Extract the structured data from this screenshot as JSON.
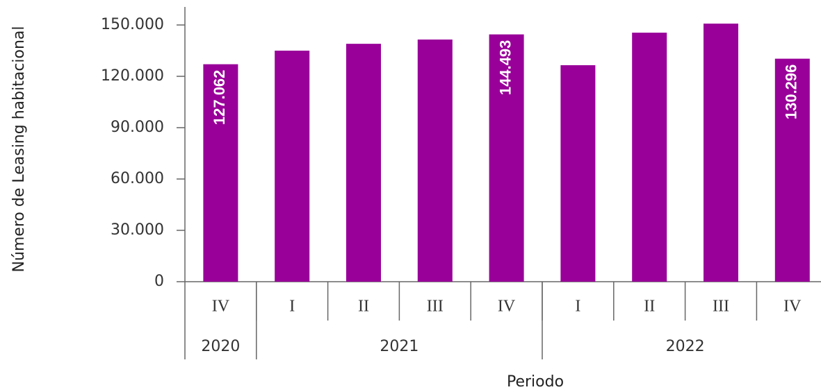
{
  "chart_data": {
    "type": "bar",
    "y_label": "Número de Leasing habitacional",
    "x_label": "Periodo",
    "categories": [
      "IV",
      "I",
      "II",
      "III",
      "IV",
      "I",
      "II",
      "III",
      "IV"
    ],
    "groups": [
      {
        "label": "2020",
        "count": 1
      },
      {
        "label": "2021",
        "count": 4
      },
      {
        "label": "2022",
        "count": 4
      }
    ],
    "values": [
      127062,
      135000,
      139000,
      141500,
      144493,
      126500,
      145500,
      150800,
      130296
    ],
    "value_labels": [
      "127.062",
      null,
      null,
      null,
      "144.493",
      null,
      null,
      null,
      "130.296"
    ],
    "color": "#990099",
    "ylim": [
      0,
      150000
    ],
    "yticks": [
      0,
      {
        "value": 30000,
        "label": "30.000"
      },
      {
        "value": 60000,
        "label": "60.000"
      },
      {
        "value": 90000,
        "label": "90.000"
      },
      {
        "value": 120000,
        "label": "120.000"
      },
      {
        "value": 150000,
        "label": "150.000"
      }
    ],
    "grid": false
  }
}
